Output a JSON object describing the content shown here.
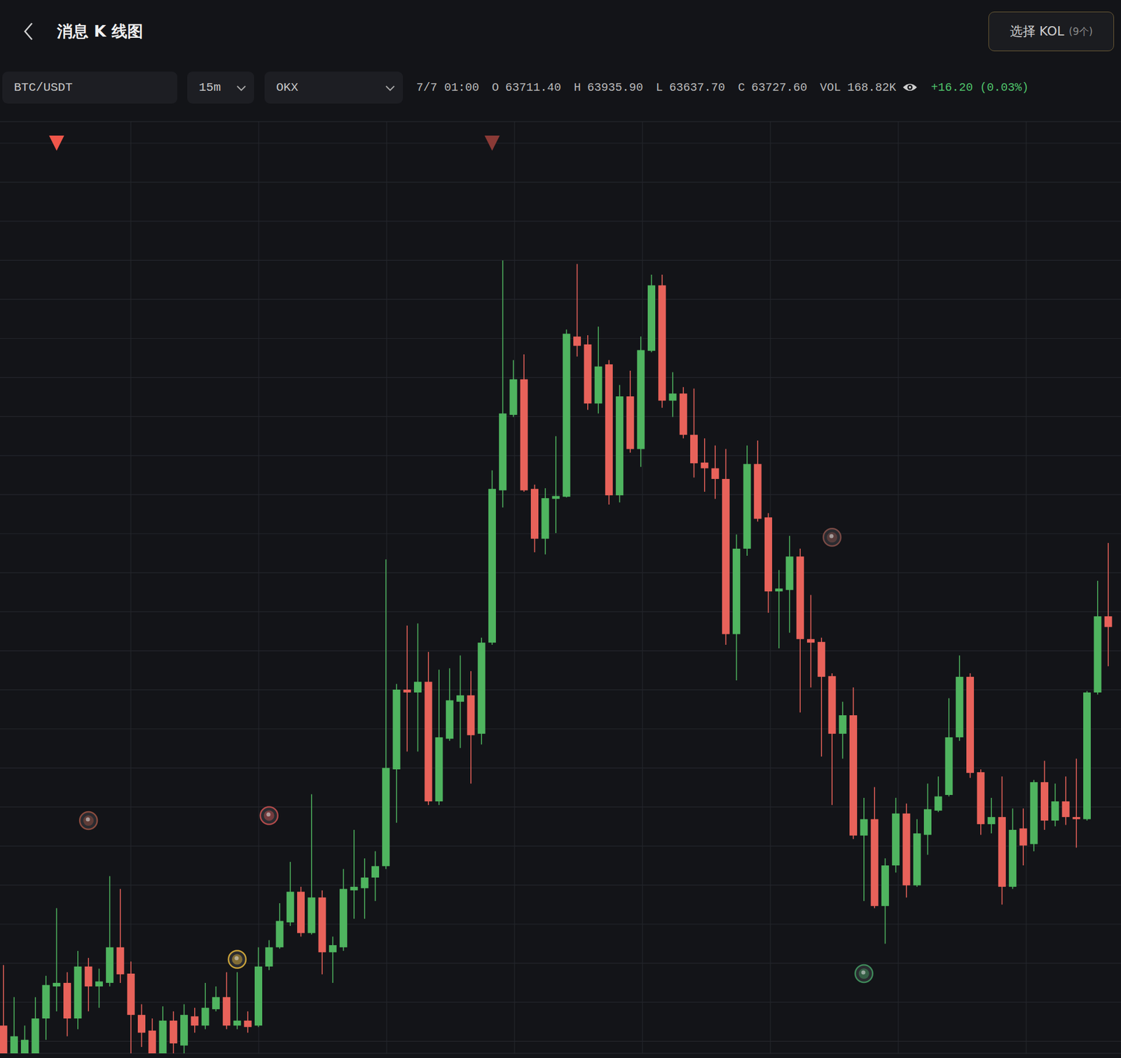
{
  "header": {
    "title": "消息 K 线图",
    "kol_button": "选择 KOL",
    "kol_count": "(9个)"
  },
  "toolbar": {
    "pair": "BTC/USDT",
    "interval": "15m",
    "exchange": "OKX"
  },
  "info": {
    "time": "7/7 01:00",
    "items": [
      {
        "label": "O",
        "value": "63711.40"
      },
      {
        "label": "H",
        "value": "63935.90"
      },
      {
        "label": "L",
        "value": "63637.70"
      },
      {
        "label": "C",
        "value": "63727.60"
      },
      {
        "label": "VOL",
        "value": "168.82K"
      }
    ],
    "change": "+16.20 (0.03%)"
  },
  "chart_data": {
    "type": "candlestick",
    "grid": true,
    "tick_labels": false,
    "ylim": [
      63291,
      64600
    ],
    "categories": [
      null,
      null,
      null,
      null,
      null,
      null,
      null,
      null,
      null,
      null,
      null,
      null,
      null,
      null,
      null,
      null,
      null,
      null,
      null,
      null,
      null,
      null,
      null,
      null,
      null,
      null,
      null,
      null,
      null,
      null,
      null,
      null,
      null,
      null,
      null,
      null,
      null,
      null,
      null,
      null,
      null,
      null,
      null,
      null,
      null,
      null,
      null,
      null,
      null,
      null,
      null,
      null,
      null,
      null,
      null,
      null,
      null,
      null,
      null,
      null,
      null,
      null,
      null,
      null,
      null,
      null,
      null,
      null,
      null,
      null,
      null,
      null,
      null,
      null,
      null,
      null,
      null,
      null,
      null,
      null,
      null,
      null,
      null,
      null,
      null,
      null,
      null,
      null,
      null,
      null,
      null,
      null,
      null,
      null,
      null,
      null,
      null,
      null,
      null,
      null,
      null,
      null,
      null,
      null,
      null
    ],
    "open": [
      63330,
      63291,
      63291,
      63291,
      63340,
      63385,
      63390,
      63340,
      63413,
      63385,
      63390,
      63440,
      63403,
      63345,
      63323,
      63291,
      63337,
      63302,
      63343,
      63330,
      63353,
      63370,
      63330,
      63337,
      63330,
      63413,
      63440,
      63475,
      63518,
      63460,
      63510,
      63433,
      63440,
      63520,
      63523,
      63538,
      63554,
      63690,
      63802,
      63798,
      63813,
      63645,
      63733,
      63785,
      63794,
      63740,
      63868,
      64082,
      64188,
      64238,
      64084,
      64014,
      64070,
      64073,
      64298,
      64287,
      64204,
      64259,
      64075,
      64214,
      64140,
      64278,
      64370,
      64208,
      64218,
      64160,
      64121,
      64113,
      64098,
      63880,
      64000,
      64119,
      64044,
      63940,
      63942,
      63989,
      63873,
      63869,
      63821,
      63740,
      63766,
      63597,
      63620,
      63498,
      63555,
      63628,
      63527,
      63598,
      63632,
      63654,
      63735,
      63820,
      63686,
      63613,
      63623,
      63525,
      63607,
      63585,
      63672,
      63618,
      63645,
      63623,
      63620,
      63798,
      63905
    ],
    "high": [
      63415,
      63370,
      63330,
      63370,
      63400,
      63495,
      63405,
      63435,
      63425,
      63410,
      63540,
      63522,
      63420,
      63360,
      63340,
      63357,
      63350,
      63360,
      63355,
      63390,
      63385,
      63405,
      63405,
      63350,
      63440,
      63450,
      63502,
      63560,
      63525,
      63655,
      63520,
      63455,
      63550,
      63605,
      63565,
      63575,
      63985,
      63810,
      63892,
      63895,
      63855,
      63830,
      63832,
      63850,
      63828,
      63875,
      64110,
      64405,
      64265,
      64273,
      64090,
      64085,
      64158,
      64308,
      64400,
      64300,
      64312,
      64265,
      64230,
      64250,
      64298,
      64385,
      64385,
      64248,
      64227,
      64225,
      64155,
      64145,
      64140,
      64020,
      64145,
      64152,
      64050,
      63970,
      64018,
      64000,
      63935,
      63875,
      63825,
      63785,
      63805,
      63650,
      63665,
      63565,
      63650,
      63642,
      63620,
      63670,
      63680,
      63790,
      63850,
      63825,
      63690,
      63650,
      63680,
      63635,
      63635,
      63675,
      63702,
      63670,
      63680,
      63705,
      63800,
      63955,
      64008
    ],
    "low": [
      63280,
      63280,
      63280,
      63280,
      63310,
      63350,
      63315,
      63325,
      63350,
      63355,
      63385,
      63390,
      63280,
      63300,
      63280,
      63280,
      63280,
      63280,
      63320,
      63325,
      63350,
      63325,
      63325,
      63320,
      63328,
      63408,
      63438,
      63470,
      63455,
      63458,
      63402,
      63390,
      63435,
      63480,
      63480,
      63505,
      63550,
      63615,
      63715,
      63715,
      63640,
      63640,
      63730,
      63720,
      63670,
      63725,
      63865,
      64058,
      64185,
      64080,
      63995,
      63992,
      64022,
      64072,
      64270,
      64195,
      64190,
      64062,
      64065,
      64135,
      64115,
      64276,
      64198,
      64185,
      64155,
      64100,
      64080,
      64070,
      63865,
      63815,
      63990,
      64038,
      63910,
      63860,
      63882,
      63770,
      63805,
      63708,
      63640,
      63705,
      63592,
      63505,
      63495,
      63445,
      63545,
      63510,
      63525,
      63570,
      63630,
      63652,
      63730,
      63678,
      63598,
      63600,
      63500,
      63522,
      63555,
      63575,
      63605,
      63610,
      63612,
      63580,
      63618,
      63795,
      63835
    ],
    "close": [
      63291,
      63315,
      63310,
      63340,
      63387,
      63390,
      63340,
      63413,
      63385,
      63392,
      63440,
      63402,
      63345,
      63320,
      63291,
      63337,
      63305,
      63345,
      63330,
      63355,
      63370,
      63330,
      63337,
      63328,
      63413,
      63440,
      63477,
      63518,
      63460,
      63510,
      63433,
      63443,
      63522,
      63525,
      63538,
      63554,
      63692,
      63802,
      63798,
      63813,
      63645,
      63735,
      63787,
      63794,
      63738,
      63868,
      64084,
      64190,
      64238,
      64082,
      64014,
      64071,
      64074,
      64302,
      64285,
      64204,
      64256,
      64075,
      64214,
      64140,
      64279,
      64370,
      64208,
      64218,
      64160,
      64120,
      64113,
      64098,
      63880,
      64000,
      64119,
      64042,
      63940,
      63944,
      63989,
      63873,
      63868,
      63820,
      63740,
      63766,
      63597,
      63620,
      63498,
      63555,
      63628,
      63527,
      63600,
      63634,
      63652,
      63735,
      63820,
      63685,
      63613,
      63623,
      63525,
      63605,
      63583,
      63672,
      63618,
      63645,
      63623,
      63620,
      63798,
      63905,
      63890
    ],
    "flags": [
      5,
      46
    ],
    "events": [
      {
        "index": 8,
        "price": 63618
      },
      {
        "index": 25,
        "price": 63625
      },
      {
        "index": 22,
        "price": 63423
      },
      {
        "index": 78,
        "price": 64016
      },
      {
        "index": 81,
        "price": 63403
      }
    ]
  }
}
